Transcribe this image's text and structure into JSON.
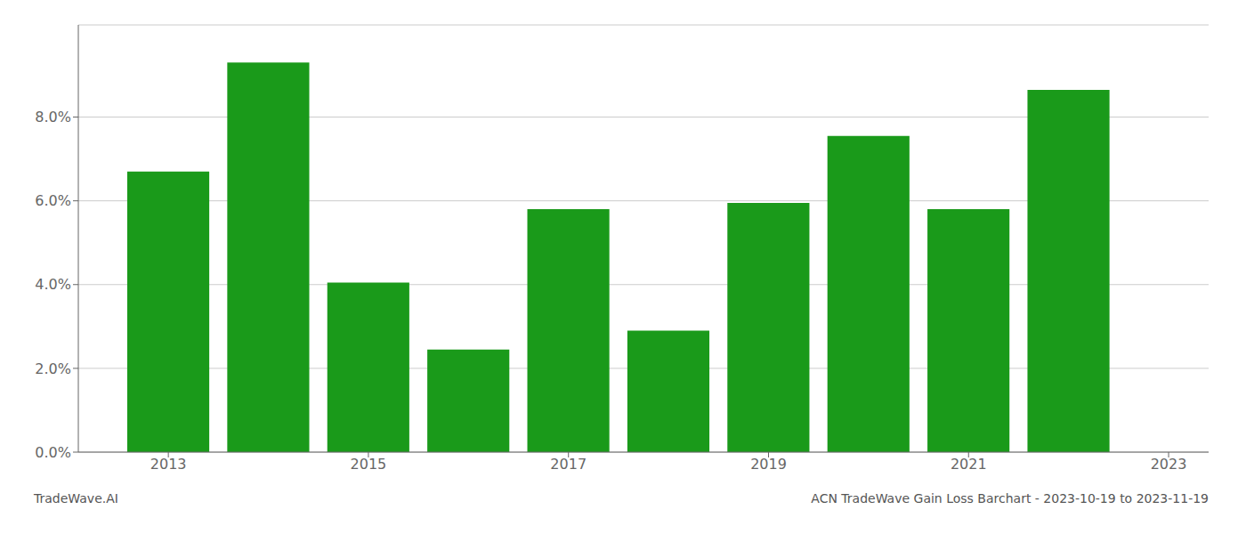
{
  "chart_data": {
    "type": "bar",
    "title": "ACN TradeWave Gain Loss Barchart - 2023-10-19 to 2023-11-19",
    "annotations": [
      "TradeWave.AI"
    ],
    "x": [
      2013,
      2014,
      2015,
      2016,
      2017,
      2018,
      2019,
      2020,
      2021,
      2022
    ],
    "values": [
      0.067,
      0.093,
      0.0405,
      0.0245,
      0.058,
      0.029,
      0.0595,
      0.0755,
      0.058,
      0.0865
    ],
    "color": "#1a9a1a",
    "xlim": [
      2012.1,
      2023.4
    ],
    "xticks": [
      2013,
      2015,
      2017,
      2019,
      2021,
      2023
    ],
    "ylim": [
      0,
      0.102
    ],
    "yticks": [
      {
        "value": 0.0,
        "label": "0.0%"
      },
      {
        "value": 0.02,
        "label": "2.0%"
      },
      {
        "value": 0.04,
        "label": "4.0%"
      },
      {
        "value": 0.06,
        "label": "6.0%"
      },
      {
        "value": 0.08,
        "label": "8.0%"
      }
    ],
    "grid": true
  }
}
